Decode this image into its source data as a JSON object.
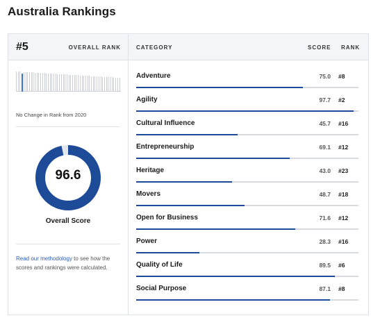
{
  "title": "Australia Rankings",
  "overall": {
    "rank": "#5",
    "rank_label": "OVERALL RANK",
    "rank_history_note": "No Change in Rank from 2020",
    "score": "96.6",
    "score_fraction": 0.966,
    "score_label": "Overall Score",
    "accent_color": "#1e4b97"
  },
  "methodology": {
    "link_text": "Read our methodology",
    "rest_text": " to see how the scores and rankings were calculated."
  },
  "table": {
    "headers": {
      "category": "CATEGORY",
      "score": "SCORE",
      "rank": "RANK"
    },
    "rows": [
      {
        "name": "Adventure",
        "score": "75.0",
        "rank": "#8",
        "value": 75.0
      },
      {
        "name": "Agility",
        "score": "97.7",
        "rank": "#2",
        "value": 97.7
      },
      {
        "name": "Cultural Influence",
        "score": "45.7",
        "rank": "#16",
        "value": 45.7
      },
      {
        "name": "Entrepreneurship",
        "score": "69.1",
        "rank": "#12",
        "value": 69.1
      },
      {
        "name": "Heritage",
        "score": "43.0",
        "rank": "#23",
        "value": 43.0
      },
      {
        "name": "Movers",
        "score": "48.7",
        "rank": "#18",
        "value": 48.7
      },
      {
        "name": "Open for Business",
        "score": "71.6",
        "rank": "#12",
        "value": 71.6
      },
      {
        "name": "Power",
        "score": "28.3",
        "rank": "#16",
        "value": 28.3
      },
      {
        "name": "Quality of Life",
        "score": "89.5",
        "rank": "#6",
        "value": 89.5
      },
      {
        "name": "Social Purpose",
        "score": "87.1",
        "rank": "#8",
        "value": 87.1
      }
    ]
  }
}
